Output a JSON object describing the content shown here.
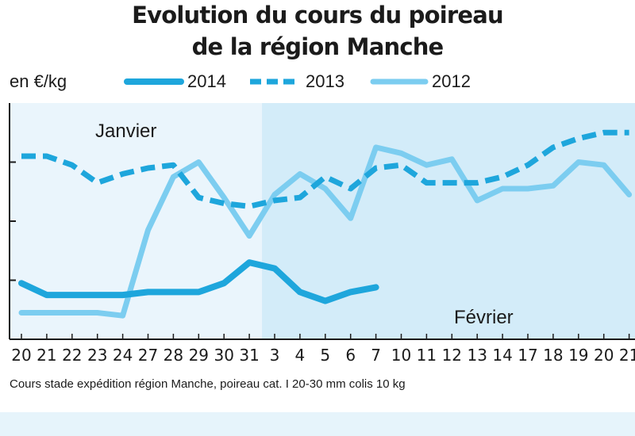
{
  "title_line1": "Evolution du cours du poireau",
  "title_line2": "de la région Manche",
  "unit_label": "en €/kg",
  "footnote": "Cours stade expédition région Manche, poireau cat. I 20-30 mm colis 10 kg",
  "colors": {
    "dark_blue": "#1ea6dc",
    "light_blue": "#7ccdf0",
    "panel_light": "#eaf5fc",
    "panel_dark": "#d3ecf9",
    "bottom_band": "#e6f4fb"
  },
  "chart_data": {
    "type": "line",
    "x_labels": [
      "20",
      "21",
      "22",
      "23",
      "24",
      "27",
      "28",
      "29",
      "30",
      "31",
      "3",
      "4",
      "5",
      "6",
      "7",
      "10",
      "11",
      "12",
      "13",
      "14",
      "17",
      "18",
      "19",
      "20",
      "21"
    ],
    "month_labels": [
      "Janvier",
      "Février"
    ],
    "ylim": [
      0,
      4
    ],
    "grid": false,
    "legend_position": "top",
    "series": [
      {
        "name": "2014",
        "style": "solid-thick",
        "color": "#1ea6dc",
        "values": [
          0.95,
          0.75,
          0.75,
          0.75,
          0.75,
          0.8,
          0.8,
          0.8,
          0.95,
          1.3,
          1.2,
          0.8,
          0.65,
          0.8,
          0.88
        ]
      },
      {
        "name": "2013",
        "style": "dashed",
        "color": "#1ea6dc",
        "values": [
          3.1,
          3.1,
          2.95,
          2.65,
          2.8,
          2.9,
          2.95,
          2.4,
          2.3,
          2.25,
          2.35,
          2.4,
          2.75,
          2.55,
          2.9,
          2.95,
          2.65,
          2.65,
          2.65,
          2.75,
          2.95,
          3.25,
          3.4,
          3.5,
          3.5
        ]
      },
      {
        "name": "2012",
        "style": "solid-light",
        "color": "#7ccdf0",
        "values": [
          0.45,
          0.45,
          0.45,
          0.45,
          0.4,
          1.85,
          2.75,
          3.0,
          2.4,
          1.75,
          2.45,
          2.8,
          2.55,
          2.05,
          3.25,
          3.15,
          2.95,
          3.05,
          2.35,
          2.55,
          2.55,
          2.6,
          3.0,
          2.95,
          2.45
        ]
      }
    ]
  }
}
